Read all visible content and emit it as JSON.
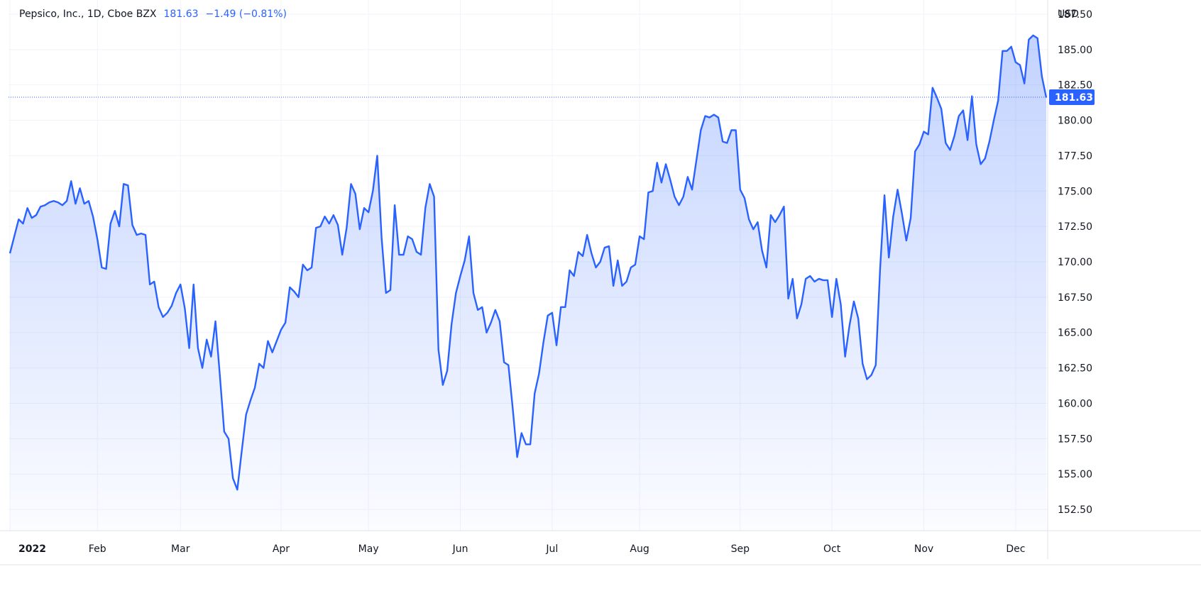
{
  "legend": {
    "symbol": "Pepsico, Inc., 1D, Cboe BZX",
    "last": "181.63",
    "change": "−1.49 (−0.81%)"
  },
  "colors": {
    "line": "#2962ff",
    "accent": "#2962ff",
    "grid": "#f0f3fa"
  },
  "chart_data": {
    "type": "area",
    "title": "Pepsico, Inc., 1D, Cboe BZX",
    "ylabel": "USD",
    "ylim": [
      151,
      188.5
    ],
    "yticks": [
      "152.50",
      "155.00",
      "157.50",
      "160.00",
      "162.50",
      "165.00",
      "167.50",
      "170.00",
      "172.50",
      "175.00",
      "177.50",
      "180.00",
      "182.50",
      "185.00",
      "187.50"
    ],
    "xticks": [
      {
        "label": "2022",
        "idx": 0,
        "bold": true
      },
      {
        "label": "Feb",
        "idx": 20
      },
      {
        "label": "Mar",
        "idx": 39
      },
      {
        "label": "Apr",
        "idx": 62
      },
      {
        "label": "May",
        "idx": 82
      },
      {
        "label": "Jun",
        "idx": 103
      },
      {
        "label": "Jul",
        "idx": 124
      },
      {
        "label": "Aug",
        "idx": 144
      },
      {
        "label": "Sep",
        "idx": 167
      },
      {
        "label": "Oct",
        "idx": 188
      },
      {
        "label": "Nov",
        "idx": 209
      },
      {
        "label": "Dec",
        "idx": 230
      }
    ],
    "last_value": "181.63",
    "grid": true,
    "series": [
      {
        "values": [
          170.6,
          171.8,
          173.0,
          172.7,
          173.8,
          173.1,
          173.3,
          173.9,
          174.0,
          174.2,
          174.3,
          174.2,
          174.0,
          174.3,
          175.7,
          174.1,
          175.2,
          174.1,
          174.3,
          173.2,
          171.6,
          169.6,
          169.5,
          172.7,
          173.6,
          172.5,
          175.5,
          175.4,
          172.6,
          171.9,
          172.0,
          171.9,
          168.4,
          168.6,
          166.8,
          166.1,
          166.4,
          166.9,
          167.8,
          168.4,
          166.7,
          163.9,
          168.4,
          163.9,
          162.5,
          164.5,
          163.3,
          165.8,
          162.0,
          158.0,
          157.5,
          154.7,
          153.9,
          156.6,
          159.2,
          160.2,
          161.1,
          162.8,
          162.5,
          164.4,
          163.6,
          164.4,
          165.2,
          165.7,
          168.2,
          167.9,
          167.5,
          169.8,
          169.4,
          169.6,
          172.4,
          172.5,
          173.2,
          172.7,
          173.3,
          172.6,
          170.5,
          172.4,
          175.5,
          174.8,
          172.3,
          173.8,
          173.5,
          175.0,
          177.5,
          171.7,
          167.8,
          168.0,
          174.0,
          170.5,
          170.5,
          171.8,
          171.6,
          170.7,
          170.5,
          173.8,
          175.5,
          174.6,
          163.8,
          161.3,
          162.3,
          165.6,
          167.8,
          169.0,
          170.1,
          171.8,
          167.8,
          166.6,
          166.8,
          165.0,
          165.7,
          166.6,
          165.8,
          162.9,
          162.7,
          159.6,
          156.2,
          157.9,
          157.1,
          157.1,
          160.7,
          162.1,
          164.3,
          166.2,
          166.4,
          164.1,
          166.8,
          166.8,
          169.4,
          169.0,
          170.7,
          170.4,
          171.9,
          170.6,
          169.6,
          170.0,
          171.0,
          171.1,
          168.3,
          170.1,
          168.3,
          168.6,
          169.6,
          169.8,
          171.8,
          171.6,
          174.9,
          175.0,
          177.0,
          175.6,
          176.9,
          175.8,
          174.6,
          174.0,
          174.6,
          176.0,
          175.1,
          177.2,
          179.3,
          180.3,
          180.2,
          180.4,
          180.2,
          178.5,
          178.4,
          179.3,
          179.3,
          175.1,
          174.5,
          173.0,
          172.3,
          172.8,
          170.8,
          169.6,
          173.3,
          172.8,
          173.3,
          173.9,
          167.4,
          168.8,
          166.0,
          167.0,
          168.8,
          169.0,
          168.6,
          168.8,
          168.7,
          168.7,
          166.1,
          168.8,
          167.0,
          163.3,
          165.5,
          167.2,
          166.0,
          162.8,
          161.7,
          162.0,
          162.7,
          169.5,
          174.7,
          170.3,
          173.2,
          175.1,
          173.4,
          171.5,
          173.1,
          177.8,
          178.3,
          179.2,
          179.0,
          182.3,
          181.6,
          180.8,
          178.4,
          177.9,
          178.9,
          180.3,
          180.7,
          178.6,
          181.7,
          178.3,
          176.9,
          177.3,
          178.5,
          180.0,
          181.4,
          184.9,
          184.9,
          185.2,
          184.1,
          183.9,
          182.6,
          185.7,
          186.0,
          185.8,
          183.1,
          181.6
        ]
      }
    ]
  }
}
